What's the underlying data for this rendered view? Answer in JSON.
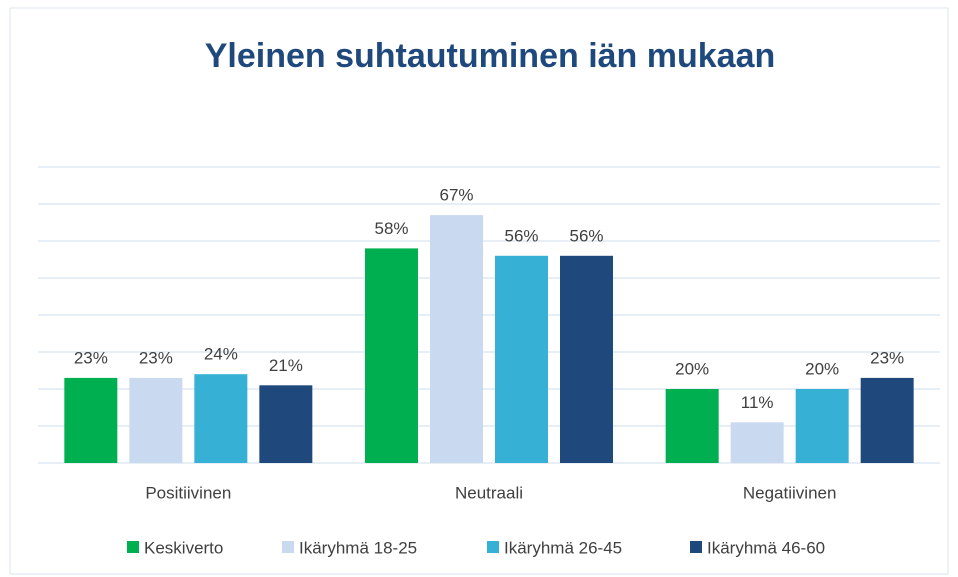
{
  "chart_data": {
    "type": "bar",
    "title": "Yleinen suhtautuminen iän mukaan",
    "categories": [
      "Positiivinen",
      "Neutraali",
      "Negatiivinen"
    ],
    "series": [
      {
        "name": "Keskiverto",
        "color": "#00b050",
        "values": [
          23,
          58,
          20
        ],
        "value_labels": [
          "23%",
          "58%",
          "20%"
        ]
      },
      {
        "name": "Ikäryhmä 18-25",
        "color": "#c9d9f0",
        "values": [
          23,
          67,
          11
        ],
        "value_labels": [
          "23%",
          "67%",
          "11%"
        ]
      },
      {
        "name": "Ikäryhmä 26-45",
        "color": "#36b0d4",
        "values": [
          24,
          56,
          20
        ],
        "value_labels": [
          "24%",
          "56%",
          "20%"
        ]
      },
      {
        "name": "Ikäryhmä 46-60",
        "color": "#1f497d",
        "values": [
          21,
          56,
          23
        ],
        "value_labels": [
          "21%",
          "56%",
          "23%"
        ]
      }
    ],
    "ylim": [
      0,
      80
    ],
    "yticks": [
      0,
      10,
      20,
      30,
      40,
      50,
      60,
      70,
      80
    ],
    "grid": true,
    "legend": "bottom"
  }
}
